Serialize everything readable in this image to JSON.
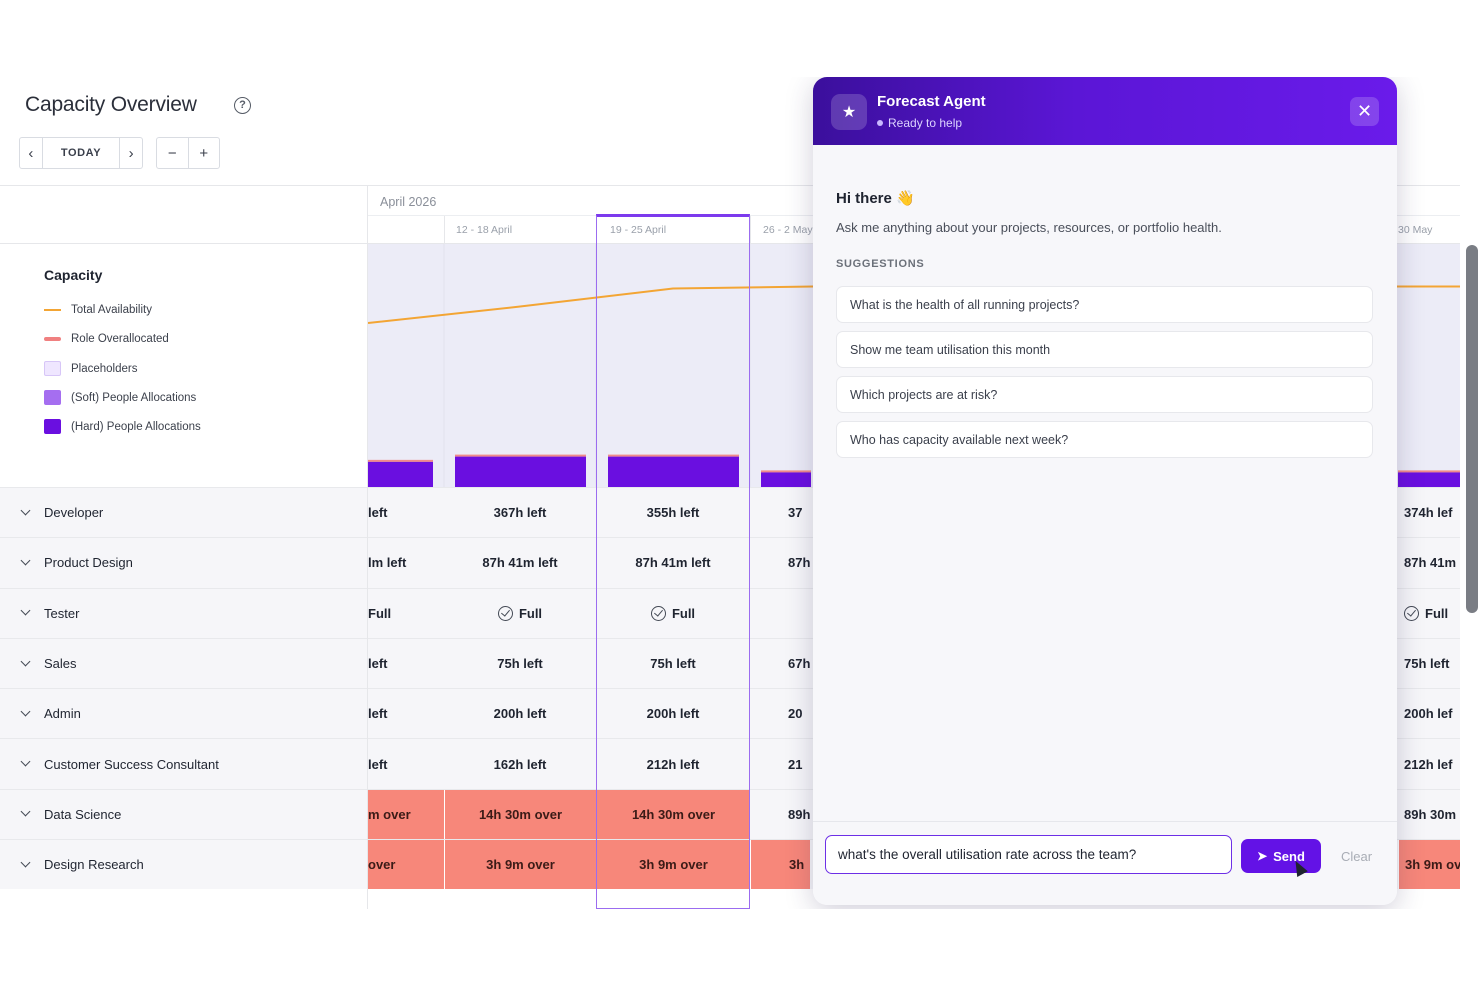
{
  "header": {
    "title": "Capacity Overview",
    "help_icon": "help-circle-icon",
    "today_label": "TODAY",
    "prev_icon": "chevron-left-icon",
    "next_icon": "chevron-right-icon",
    "zoom_out_label": "−",
    "zoom_in_label": "+"
  },
  "timeline": {
    "month": "April 2026",
    "weeks": [
      "",
      "12 - 18 April",
      "19 - 25 April",
      "26 - 2 May",
      "",
      "",
      "",
      "",
      "",
      "",
      "",
      "",
      "30 May"
    ],
    "selected_week": "19 - 25 April"
  },
  "legend": {
    "title": "Capacity",
    "items": [
      {
        "label": "Total Availability",
        "color": "#f3a534",
        "kind": "line"
      },
      {
        "label": "Role Overallocated",
        "color": "#f08080",
        "kind": "pill"
      },
      {
        "label": "Placeholders",
        "color": "#efe6ff",
        "kind": "box"
      },
      {
        "label": "(Soft) People Allocations",
        "color": "#a56ef0",
        "kind": "box"
      },
      {
        "label": "(Hard) People Allocations",
        "color": "#6a0fe0",
        "kind": "box"
      }
    ]
  },
  "chart_data": {
    "type": "bar",
    "categories": [
      "",
      "12 - 18 April",
      "19 - 25 April",
      "26 - 2 May",
      "30 May"
    ],
    "series": [
      {
        "name": "(Hard) People Allocations",
        "values": [
          0.62,
          0.75,
          0.75,
          0.36,
          0.36
        ]
      },
      {
        "name": "Role Overallocated",
        "values": [
          0.05,
          0.05,
          0.05,
          0.05,
          0.05
        ]
      },
      {
        "name": "Total Availability",
        "values": [
          4.05,
          4.45,
          4.9,
          4.95,
          4.95
        ]
      }
    ],
    "ylim": [
      0,
      6
    ],
    "colors": {
      "hard": "#6a0fe0",
      "over": "#f08a8a",
      "availability": "#f3a534"
    }
  },
  "roles": [
    {
      "name": "Developer",
      "cells": [
        "left",
        "367h left",
        "355h left",
        "37",
        "374h lef"
      ]
    },
    {
      "name": "Product Design",
      "cells": [
        "lm left",
        "87h 41m left",
        "87h 41m left",
        "87h",
        "87h 41m l"
      ]
    },
    {
      "name": "Tester",
      "cells": [
        "Full",
        "Full",
        "Full",
        "",
        "Full"
      ],
      "check": [
        false,
        true,
        true,
        false,
        true
      ]
    },
    {
      "name": "Sales",
      "cells": [
        "left",
        "75h left",
        "75h left",
        "67h",
        "75h left"
      ]
    },
    {
      "name": "Admin",
      "cells": [
        "left",
        "200h left",
        "200h left",
        "20",
        "200h lef"
      ]
    },
    {
      "name": "Customer Success Consultant",
      "cells": [
        "left",
        "162h left",
        "212h left",
        "21",
        "212h lef"
      ]
    },
    {
      "name": "Data Science",
      "cells": [
        "m over",
        "14h 30m over",
        "14h 30m over",
        "89h",
        "89h 30m l"
      ],
      "over": [
        true,
        true,
        true,
        false,
        false
      ]
    },
    {
      "name": "Design Research",
      "cells": [
        "over",
        "3h 9m over",
        "3h 9m over",
        "3h",
        "3h 9m ov"
      ],
      "over": [
        true,
        true,
        true,
        true,
        true
      ]
    }
  ],
  "agent": {
    "title": "Forecast Agent",
    "status": "Ready to help",
    "avatar_icon": "sparkle-icon",
    "close_icon": "close-icon",
    "greeting": "Hi there 👋",
    "subtitle": "Ask me anything about your projects, resources, or portfolio health.",
    "suggestions_heading": "SUGGESTIONS",
    "suggestions": [
      "What is the health of all running projects?",
      "Show me team utilisation this month",
      "Which projects are at risk?",
      "Who has capacity available next week?"
    ],
    "input_value": "what's the overall utilisation rate across the team?",
    "send_label": "Send",
    "clear_label": "Clear"
  }
}
